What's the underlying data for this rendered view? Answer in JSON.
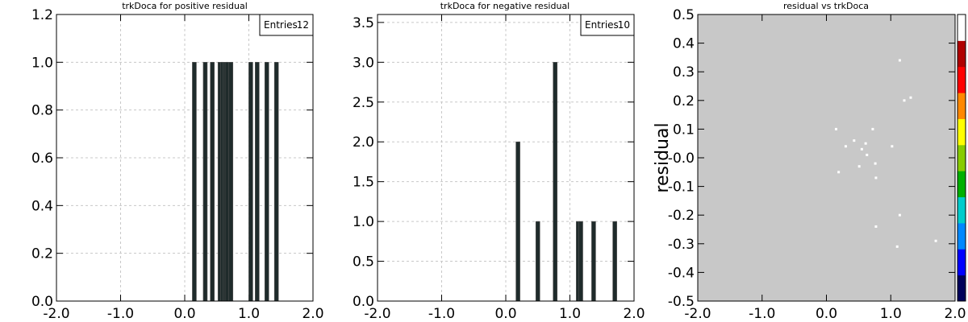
{
  "chart_data": [
    {
      "type": "bar",
      "title": "trkDoca for positive residual",
      "xlim": [
        -2.0,
        2.0
      ],
      "ylim": [
        0.0,
        1.2
      ],
      "xticks": [
        "-2.0",
        "-1.0",
        "0.0",
        "1.0",
        "2.0"
      ],
      "yticks": [
        "0.0",
        "0.2",
        "0.4",
        "0.6",
        "0.8",
        "1.0",
        "1.2"
      ],
      "grid": true,
      "stats": {
        "label": "Entries",
        "value": "12"
      },
      "x": [
        0.15,
        0.32,
        0.43,
        0.55,
        0.59,
        0.63,
        0.66,
        0.72,
        1.03,
        1.13,
        1.28,
        1.43
      ],
      "values": [
        1,
        1,
        1,
        1,
        1,
        1,
        1,
        1,
        1,
        1,
        1,
        1
      ]
    },
    {
      "type": "bar",
      "title": "trkDoca for negative residual",
      "xlim": [
        -2.0,
        2.0
      ],
      "ylim": [
        0.0,
        3.6
      ],
      "xticks": [
        "-2.0",
        "-1.0",
        "0.0",
        "1.0",
        "2.0"
      ],
      "yticks": [
        "0.0",
        "0.5",
        "1.0",
        "1.5",
        "2.0",
        "2.5",
        "3.0",
        "3.5"
      ],
      "grid": true,
      "stats": {
        "label": "Entries",
        "value": "10"
      },
      "x": [
        0.19,
        0.5,
        0.77,
        1.13,
        1.17,
        1.37,
        1.7
      ],
      "values": [
        2,
        1,
        3,
        1,
        1,
        1,
        1
      ]
    },
    {
      "type": "scatter",
      "title": "residual vs trkDoca",
      "ylabel": "residual",
      "xlim": [
        -2.0,
        2.0
      ],
      "ylim": [
        -0.5,
        0.5
      ],
      "xticks": [
        "-2.0",
        "-1.0",
        "0.0",
        "1.0",
        "2.0"
      ],
      "yticks": [
        "0.5",
        "0.4",
        "0.3",
        "0.2",
        "0.1",
        "-0.0",
        "-0.1",
        "-0.2",
        "-0.3",
        "-0.4",
        "-0.5"
      ],
      "background": "#c8c8c8",
      "marker_color": "#ffffff",
      "palette": [
        "#00005a",
        "#0000ff",
        "#0088ff",
        "#00cccc",
        "#00b000",
        "#88cc00",
        "#ffff00",
        "#ff8800",
        "#ff0000",
        "#b00000",
        "#ffffff"
      ],
      "points": [
        {
          "x": 1.14,
          "y": 0.34
        },
        {
          "x": 1.21,
          "y": 0.2
        },
        {
          "x": 1.31,
          "y": 0.21
        },
        {
          "x": 0.15,
          "y": 0.1
        },
        {
          "x": 0.72,
          "y": 0.1
        },
        {
          "x": 0.43,
          "y": 0.06
        },
        {
          "x": 0.61,
          "y": 0.05
        },
        {
          "x": 0.3,
          "y": 0.04
        },
        {
          "x": 1.02,
          "y": 0.04
        },
        {
          "x": 0.55,
          "y": 0.03
        },
        {
          "x": 0.63,
          "y": 0.01
        },
        {
          "x": 0.76,
          "y": -0.02
        },
        {
          "x": 0.51,
          "y": -0.03
        },
        {
          "x": 0.19,
          "y": -0.05
        },
        {
          "x": 0.77,
          "y": -0.07
        },
        {
          "x": 1.14,
          "y": -0.2
        },
        {
          "x": 0.77,
          "y": -0.24
        },
        {
          "x": 1.7,
          "y": -0.29
        },
        {
          "x": 1.1,
          "y": -0.31
        }
      ]
    }
  ]
}
